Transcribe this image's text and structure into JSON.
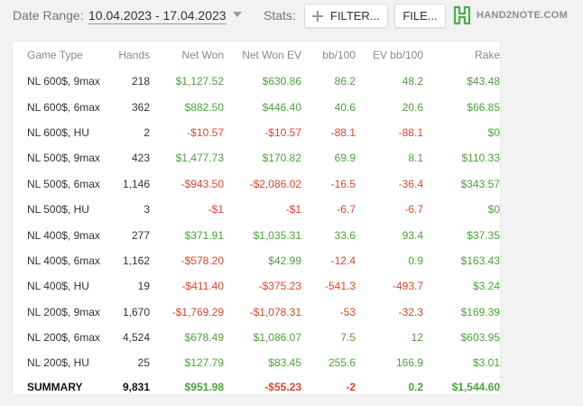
{
  "toolbar": {
    "date_range_label": "Date Range:",
    "date_range_value": "10.04.2023 - 17.04.2023",
    "stats_label": "Stats:",
    "filter_label": "FILTER...",
    "file_label": "FILE...",
    "logo_text": "HAND2NOTE.COM",
    "colors": {
      "logo_green": "#4caf50",
      "positive": "#4aa33a",
      "negative": "#d8472c"
    },
    "icons": [
      "chevron-down-icon",
      "plus-icon",
      "hand2note-logo-icon"
    ]
  },
  "table": {
    "headers": [
      "Game Type",
      "Hands",
      "Net Won",
      "Net Won  EV",
      "bb/100",
      "EV bb/100",
      "Rake"
    ],
    "rows": [
      [
        "NL 600$, 9max",
        "218",
        "$1,127.52",
        "$630.86",
        "86.2",
        "48.2",
        "$43.48"
      ],
      [
        "NL 600$, 6max",
        "362",
        "$882.50",
        "$446.40",
        "40.6",
        "20.6",
        "$66.85"
      ],
      [
        "NL 600$, HU",
        "2",
        "-$10.57",
        "-$10.57",
        "-88.1",
        "-88.1",
        "$0"
      ],
      [
        "NL 500$, 9max",
        "423",
        "$1,477.73",
        "$170.82",
        "69.9",
        "8.1",
        "$110.33"
      ],
      [
        "NL 500$, 6max",
        "1,146",
        "-$943.50",
        "-$2,086.02",
        "-16.5",
        "-36.4",
        "$343.57"
      ],
      [
        "NL 500$, HU",
        "3",
        "-$1",
        "-$1",
        "-6.7",
        "-6.7",
        "$0"
      ],
      [
        "NL 400$, 9max",
        "277",
        "$371.91",
        "$1,035.31",
        "33.6",
        "93.4",
        "$37.35"
      ],
      [
        "NL 400$, 6max",
        "1,162",
        "-$578.20",
        "$42.99",
        "-12.4",
        "0.9",
        "$163.43"
      ],
      [
        "NL 400$, HU",
        "19",
        "-$411.40",
        "-$375.23",
        "-541.3",
        "-493.7",
        "$3.24"
      ],
      [
        "NL 200$, 9max",
        "1,670",
        "-$1,769.29",
        "-$1,078.31",
        "-53",
        "-32.3",
        "$169.39"
      ],
      [
        "NL 200$, 6max",
        "4,524",
        "$678.49",
        "$1,086.07",
        "7.5",
        "12",
        "$603.95"
      ],
      [
        "NL 200$, HU",
        "25",
        "$127.79",
        "$83.45",
        "255.6",
        "166.9",
        "$3.01"
      ]
    ],
    "summary": [
      "SUMMARY",
      "9,831",
      "$951.98",
      "-$55.23",
      "-2",
      "0.2",
      "$1,544.60"
    ]
  }
}
